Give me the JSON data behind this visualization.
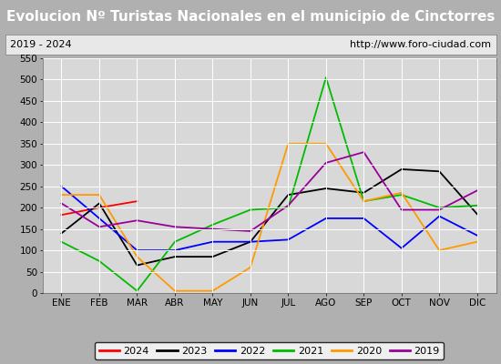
{
  "title": "Evolucion Nº Turistas Nacionales en el municipio de Cinctorres",
  "subtitle_left": "2019 - 2024",
  "subtitle_right": "http://www.foro-ciudad.com",
  "months": [
    "ENE",
    "FEB",
    "MAR",
    "ABR",
    "MAY",
    "JUN",
    "JUL",
    "AGO",
    "SEP",
    "OCT",
    "NOV",
    "DIC"
  ],
  "series": {
    "2024": [
      183,
      200,
      215,
      null,
      null,
      null,
      null,
      null,
      null,
      null,
      null,
      null
    ],
    "2023": [
      140,
      210,
      65,
      85,
      85,
      120,
      230,
      245,
      235,
      290,
      285,
      185
    ],
    "2022": [
      250,
      175,
      100,
      100,
      120,
      120,
      125,
      175,
      175,
      105,
      180,
      135
    ],
    "2021": [
      120,
      75,
      5,
      120,
      160,
      195,
      200,
      505,
      215,
      230,
      200,
      205
    ],
    "2020": [
      230,
      230,
      85,
      5,
      5,
      60,
      350,
      350,
      215,
      235,
      100,
      120
    ],
    "2019": [
      210,
      155,
      170,
      155,
      150,
      145,
      205,
      305,
      330,
      195,
      195,
      240
    ]
  },
  "colors": {
    "2024": "#ff0000",
    "2023": "#000000",
    "2022": "#0000ff",
    "2021": "#00bb00",
    "2020": "#ff9900",
    "2019": "#990099"
  },
  "ylim": [
    0,
    550
  ],
  "yticks": [
    0,
    50,
    100,
    150,
    200,
    250,
    300,
    350,
    400,
    450,
    500,
    550
  ],
  "title_bg": "#4472c4",
  "title_color": "#ffffff",
  "plot_bg": "#d8d8d8",
  "grid_color": "#ffffff",
  "outer_bg": "#b0b0b0",
  "sub_bg": "#e8e8e8",
  "title_fontsize": 11,
  "subtitle_fontsize": 8,
  "axis_label_fontsize": 7.5,
  "legend_fontsize": 8
}
